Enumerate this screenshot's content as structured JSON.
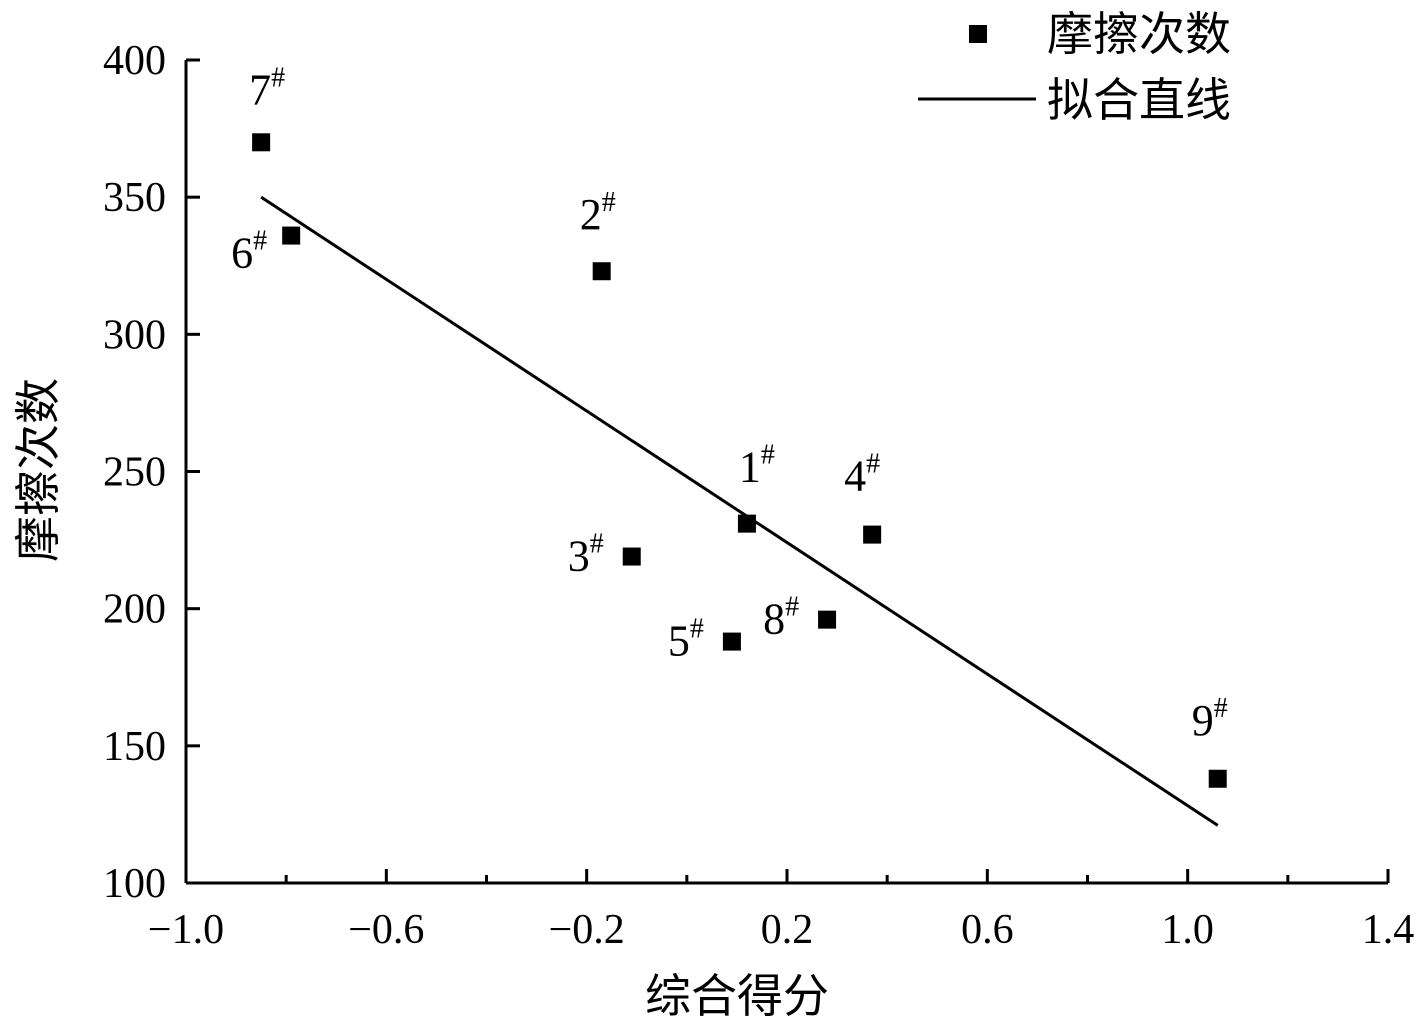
{
  "chart_data": {
    "type": "scatter",
    "xlabel": "综合得分",
    "ylabel": "摩擦次数",
    "xlim": [
      -1.0,
      1.4
    ],
    "ylim": [
      100,
      400
    ],
    "x_ticks": [
      "−1.0",
      "−0.6",
      "−0.2",
      "0.2",
      "0.6",
      "1.0",
      "1.4"
    ],
    "x_tick_values": [
      -1.0,
      -0.6,
      -0.2,
      0.2,
      0.6,
      1.0,
      1.4
    ],
    "y_ticks": [
      "100",
      "150",
      "200",
      "250",
      "300",
      "350",
      "400"
    ],
    "y_tick_values": [
      100,
      150,
      200,
      250,
      300,
      350,
      400
    ],
    "legend": {
      "position": "top-right",
      "points_label": "摩擦次数",
      "line_label": "拟合直线"
    },
    "series": [
      {
        "name": "摩擦次数",
        "points": [
          {
            "label": "7",
            "x": -0.85,
            "y": 370
          },
          {
            "label": "6",
            "x": -0.79,
            "y": 336
          },
          {
            "label": "2",
            "x": -0.17,
            "y": 323
          },
          {
            "label": "3",
            "x": -0.11,
            "y": 219
          },
          {
            "label": "1",
            "x": 0.12,
            "y": 231
          },
          {
            "label": "4",
            "x": 0.37,
            "y": 227
          },
          {
            "label": "5",
            "x": 0.09,
            "y": 188
          },
          {
            "label": "8",
            "x": 0.28,
            "y": 196
          },
          {
            "label": "9",
            "x": 1.06,
            "y": 138
          }
        ]
      }
    ],
    "fit_line": {
      "name": "拟合直线",
      "x": [
        -0.85,
        1.06
      ],
      "y": [
        350,
        121
      ]
    },
    "label_suffix": "#"
  }
}
